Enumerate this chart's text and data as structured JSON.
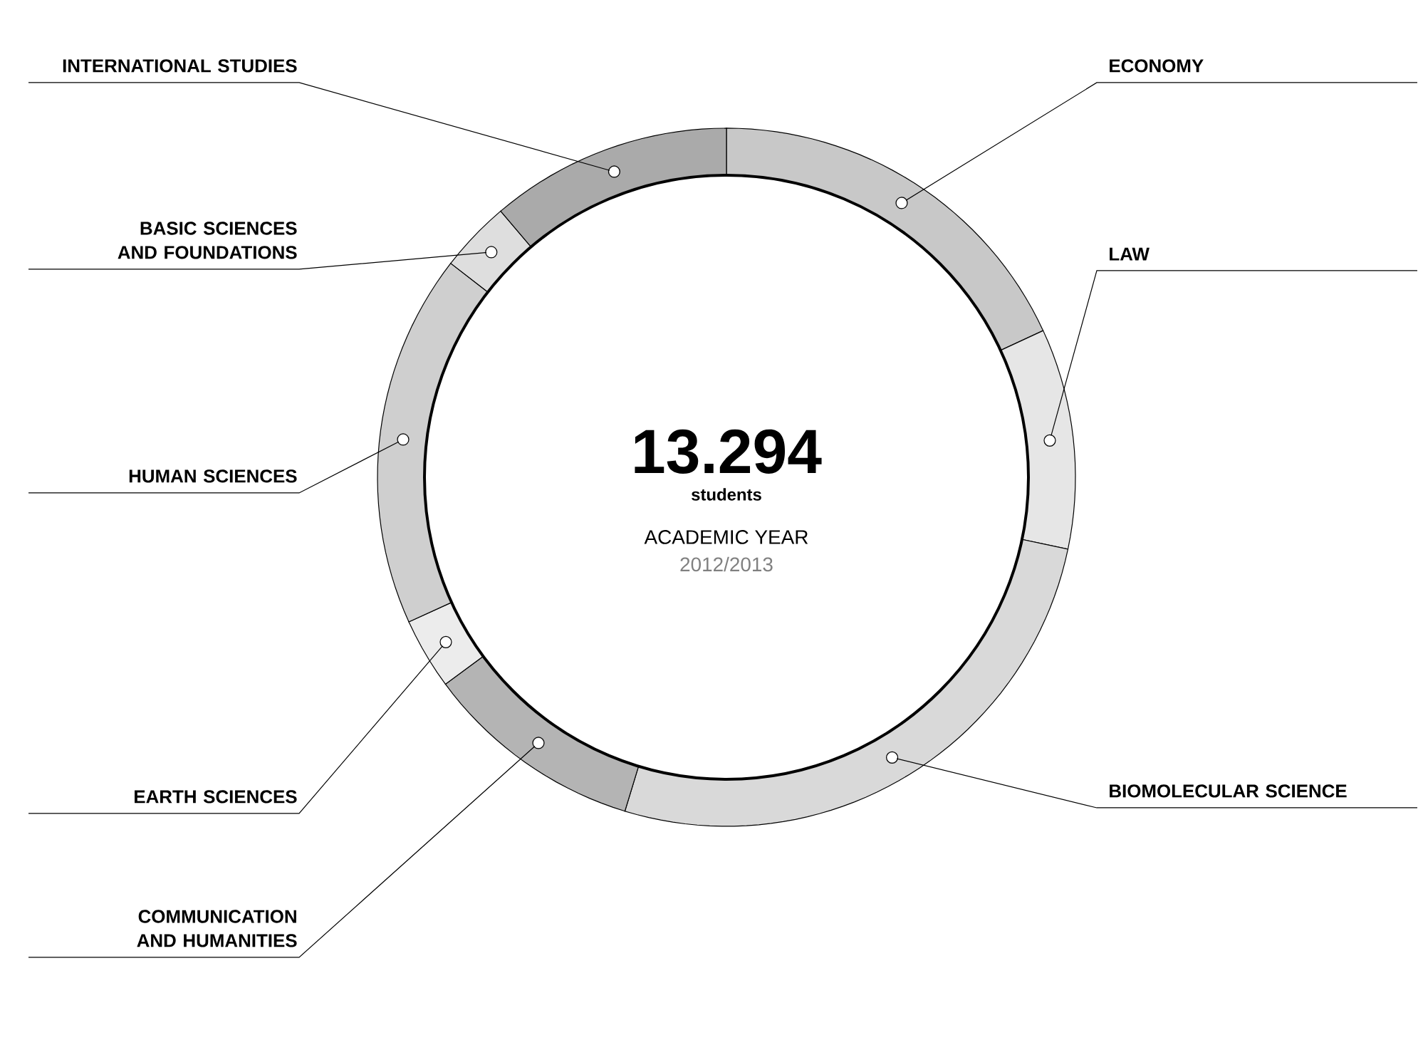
{
  "chart_data": {
    "type": "donut",
    "title": "13.294",
    "subtitle": "students",
    "annotations": [
      "ACADEMIC YEAR",
      "2012/2013"
    ],
    "categories": [
      "ECONOMY",
      "LAW",
      "BIOMOLECULAR SCIENCE",
      "COMMUNICATION AND HUMANITIES",
      "EARTH SCIENCES",
      "HUMAN SCIENCES",
      "BASIC SCIENCES AND FOUNDATIONS",
      "INTERNATIONAL STUDIES"
    ],
    "values": [
      18.1,
      10.2,
      26.4,
      10.2,
      3.3,
      17.3,
      3.3,
      11.2
    ],
    "colors": [
      "#c8c8c8",
      "#e6e6e6",
      "#d9d9d9",
      "#b4b4b4",
      "#ececec",
      "#cfcfcf",
      "#dedede",
      "#aaaaaa"
    ]
  }
}
